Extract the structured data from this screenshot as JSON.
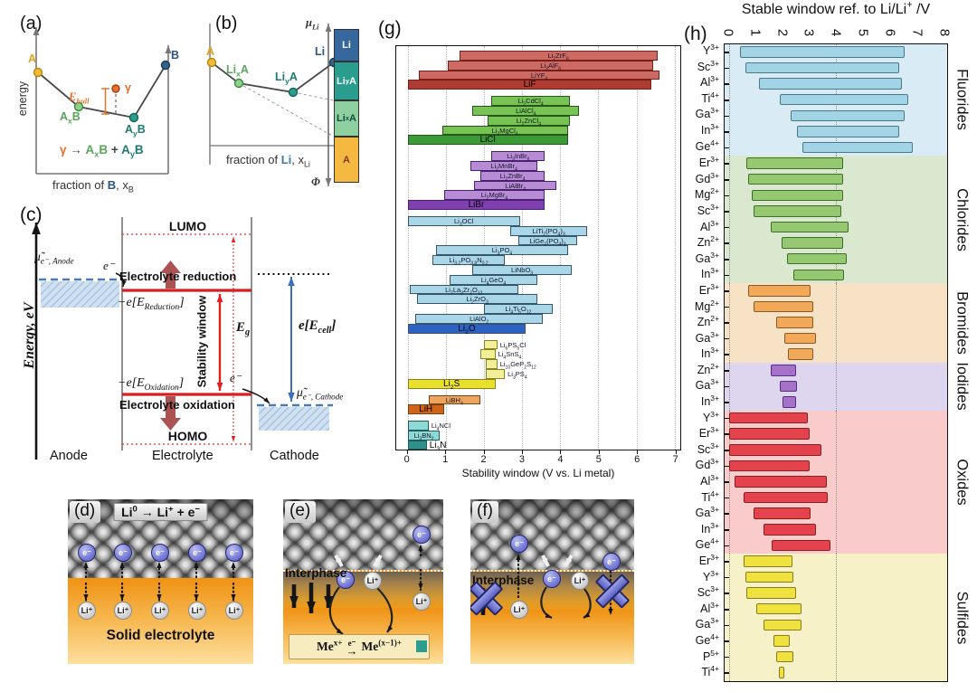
{
  "figure": {
    "panels": {
      "a": {
        "label": "(a)",
        "ylabel": "energy",
        "xlabel_pre": "fraction of ",
        "xlabel_elem": "B",
        "xlabel_post": ", x_{B}",
        "point_A": "A",
        "point_AxB": "A_{x}B",
        "point_AyB": "A_{y}B",
        "point_B": "B",
        "point_gamma": "γ",
        "ehull": "E_{hull}",
        "rx_lhs": "γ",
        "rx_arrow": "→",
        "rx_t1": "A_{x}B",
        "rx_plus": "+",
        "rx_t2": "A_{y}B",
        "colors": {
          "A": "#f0bc3a",
          "AxB": "#8fcf8f",
          "AyB": "#2a9d8f",
          "B": "#33658a",
          "gamma": "#e8702a"
        }
      },
      "b": {
        "label": "(b)",
        "mu": "μ_{Li}",
        "phi": "Φ",
        "xlabel_pre": "fraction of ",
        "xlabel_elem": "Li",
        "xlabel_post": ", x_{Li}",
        "point_A": "A",
        "point_LixA": "Li_{x}A",
        "point_LiyA": "Li_{y}A",
        "point_Li": "Li",
        "segments": [
          {
            "label": "Li",
            "color": "#36689e",
            "text_color": "#ffffff"
          },
          {
            "label": "Li_{y}A",
            "color": "#2a9d8f",
            "text_color": "#ffffff"
          },
          {
            "label": "Li_{x}A",
            "color": "#8fd0a0",
            "text_color": "#14503c"
          },
          {
            "label": "A",
            "color": "#f5b942",
            "text_color": "#7a3c0e"
          }
        ]
      },
      "c": {
        "label": "(c)",
        "ylabel": "Energy, eV",
        "lumo": "LUMO",
        "homo": "HOMO",
        "reduction_label": "Electrolyte reduction",
        "oxidation_label": "Electrolyte oxidation",
        "e_reduction": "−e[E_{Reduction}]",
        "e_oxidation": "−e[E_{Oxidation}]",
        "stability_window": "Stability window",
        "eg": "E_{g}",
        "ecell": "e[E_{cell}]",
        "mu_anode": "μ̃_{e⁻, Anode}",
        "mu_cathode": "μ̃_{e⁻, Cathode}",
        "electron": "e⁻",
        "anode": "Anode",
        "electrolyte": "Electrolyte",
        "cathode": "Cathode"
      },
      "d": {
        "label": "(d)",
        "reaction": "Li^{0} → Li^{+} + e^{−}",
        "electron": "e⁻",
        "ion": "Li⁺",
        "caption": "Solid electrolyte"
      },
      "e": {
        "label": "(e)",
        "interphase": "Interphase",
        "electron": "e⁻",
        "ion": "Li⁺",
        "rx_left": "Me^{x+}",
        "rx_over": "e⁻",
        "rx_arrow": "→",
        "rx_right": "Me^{(x−1)+}"
      },
      "f": {
        "label": "(f)",
        "interphase": "Interphase",
        "electron": "e⁻",
        "ion": "Li⁺"
      },
      "g": {
        "label": "(g)"
      },
      "h": {
        "label": "(h)"
      }
    }
  },
  "chart_data": [
    {
      "id": "g",
      "type": "bar",
      "orientation": "horizontal-range",
      "xlabel": "Stability window (V vs. Li metal)",
      "xlim": [
        0,
        7
      ],
      "xticks": [
        0,
        1,
        2,
        3,
        4,
        5,
        6,
        7
      ],
      "grid": "dotted-vertical",
      "groups": [
        {
          "name": "fluorides",
          "fill": "#cd6a63",
          "border": "#7a1f18",
          "dark_fill": "#ae3b32",
          "bars": [
            {
              "label": "Li_{2}ZrF_{6}",
              "lo": 1.35,
              "hi": 6.55
            },
            {
              "label": "Li_{3}AlF_{6}",
              "lo": 1.05,
              "hi": 6.45
            },
            {
              "label": "LiYF_{4}",
              "lo": 0.3,
              "hi": 6.6
            },
            {
              "label": "LiF",
              "lo": 0,
              "hi": 6.4,
              "dark": true
            }
          ]
        },
        {
          "name": "chlorides",
          "fill": "#77c353",
          "border": "#27561b",
          "dark_fill": "#3a9a35",
          "bars": [
            {
              "label": "Li_{2}CdCl_{4}",
              "lo": 2.2,
              "hi": 4.25
            },
            {
              "label": "LiAlCl_{4}",
              "lo": 1.7,
              "hi": 4.5
            },
            {
              "label": "Li_{2}ZnCl_{4}",
              "lo": 2.1,
              "hi": 4.25
            },
            {
              "label": "Li_{2}MgCl_{4}",
              "lo": 0.9,
              "hi": 4.2
            },
            {
              "label": "LiCl",
              "lo": 0,
              "hi": 4.2,
              "dark": true
            }
          ]
        },
        {
          "name": "bromides",
          "fill": "#b78cd4",
          "border": "#4a2070",
          "dark_fill": "#8040b0",
          "bars": [
            {
              "label": "Li_{3}InBr_{6}",
              "lo": 2.2,
              "hi": 3.6
            },
            {
              "label": "Li_{2}MnBr_{4}",
              "lo": 1.65,
              "hi": 3.4
            },
            {
              "label": "Li_{2}ZnBr_{4}",
              "lo": 1.9,
              "hi": 3.6
            },
            {
              "label": "LiAlBr_{4}",
              "lo": 1.75,
              "hi": 3.9
            },
            {
              "label": "Li_{2}MgBr_{4}",
              "lo": 0.95,
              "hi": 3.6
            },
            {
              "label": "LiBr",
              "lo": 0,
              "hi": 3.6,
              "dark": true
            }
          ]
        },
        {
          "name": "oxides",
          "fill": "#aad7e8",
          "border": "#35566b",
          "dark_fill": "#2b62c4",
          "bars": [
            {
              "label": "Li_{3}OCl",
              "lo": 0,
              "hi": 2.95
            },
            {
              "label": "LiTi_{2}(PO_{4})_{3}",
              "lo": 2.7,
              "hi": 4.7
            },
            {
              "label": "LiGe_{2}(PO_{4})_{3}",
              "lo": 2.9,
              "hi": 4.45
            },
            {
              "label": "Li_{3}PO_{4}",
              "lo": 0.75,
              "hi": 4.2
            },
            {
              "label": "Li_{3.2}PO_{3.8}N_{0.2}",
              "lo": 0.65,
              "hi": 2.55
            },
            {
              "label": "LiNbO_{3}",
              "lo": 1.7,
              "hi": 4.3
            },
            {
              "label": "Li_{4}GeO_{4}",
              "lo": 1.1,
              "hi": 3.4
            },
            {
              "label": "Li_{7}La_{3}Zr_{2}O_{12}",
              "lo": 0.05,
              "hi": 2.9
            },
            {
              "label": "Li_{2}ZrO_{3}",
              "lo": 0.25,
              "hi": 3.4
            },
            {
              "label": "Li_{4}Ti_{5}O_{12}",
              "lo": 2.0,
              "hi": 3.8
            },
            {
              "label": "LiAlO_{2}",
              "lo": 0.2,
              "hi": 3.55
            },
            {
              "label": "Li_{2}O",
              "lo": 0,
              "hi": 3.1,
              "dark": true
            }
          ]
        },
        {
          "name": "sulfides",
          "fill": "#f2ef9a",
          "border": "#8a8420",
          "dark_fill": "#e8e02a",
          "bars": [
            {
              "label": "Li_{6}PS_{5}Cl",
              "lo": 2.0,
              "hi": 2.35,
              "label_pos": "right"
            },
            {
              "label": "Li_{4}SnS_{4}",
              "lo": 1.9,
              "hi": 2.3,
              "label_pos": "right"
            },
            {
              "label": "Li_{10}GeP_{2}S_{12}",
              "lo": 2.05,
              "hi": 2.35,
              "label_pos": "right"
            },
            {
              "label": "Li_{3}PS_{4}",
              "lo": 2.05,
              "hi": 2.55,
              "label_pos": "right"
            },
            {
              "label": "Li_{2}S",
              "lo": 0,
              "hi": 2.3,
              "dark": true
            }
          ]
        },
        {
          "name": "hydrides",
          "fill": "#eca55e",
          "border": "#7a4210",
          "dark_fill": "#cf6418",
          "bars": [
            {
              "label": "LiBH_{4}",
              "lo": 0.55,
              "hi": 1.9
            },
            {
              "label": "LiH",
              "lo": 0,
              "hi": 0.95,
              "dark": true
            }
          ]
        },
        {
          "name": "nitrides",
          "fill": "#8ed9d3",
          "border": "#1f5f5f",
          "dark_fill": "#2f8f8a",
          "bars": [
            {
              "label": "Li_{4}NCl",
              "lo": 0,
              "hi": 0.55,
              "label_pos": "right"
            },
            {
              "label": "Li_{3}BN_{2}",
              "lo": 0,
              "hi": 0.85
            },
            {
              "label": "Li_{3}N",
              "lo": 0,
              "hi": 0.5,
              "dark": true,
              "label_pos": "right"
            }
          ]
        }
      ]
    },
    {
      "id": "h",
      "type": "bar",
      "orientation": "horizontal-range",
      "title": "Stable window ref. to Li/Li^{+} /V",
      "xlim": [
        0,
        8
      ],
      "xticks": [
        0,
        1,
        2,
        3,
        4,
        5,
        6,
        7,
        8
      ],
      "gridlines_at": [
        0,
        4
      ],
      "sections": [
        {
          "name": "Fluorides",
          "bg": "#d9ecf6",
          "fill": "#a2d4e6",
          "border": "#4a7a8a",
          "rows": [
            {
              "ion": "Y^{3+}",
              "lo": 0.4,
              "hi": 6.55
            },
            {
              "ion": "Sc^{3+}",
              "lo": 0.6,
              "hi": 6.35
            },
            {
              "ion": "Al^{3+}",
              "lo": 1.1,
              "hi": 6.45
            },
            {
              "ion": "Ti^{4+}",
              "lo": 1.9,
              "hi": 6.7
            },
            {
              "ion": "Ga^{3+}",
              "lo": 2.3,
              "hi": 6.55
            },
            {
              "ion": "In^{3+}",
              "lo": 2.55,
              "hi": 6.35
            },
            {
              "ion": "Ge^{4+}",
              "lo": 2.75,
              "hi": 6.85
            }
          ]
        },
        {
          "name": "Chlorides",
          "bg": "#dbe8d0",
          "fill": "#95c871",
          "border": "#3f6e2a",
          "rows": [
            {
              "ion": "Er^{3+}",
              "lo": 0.65,
              "hi": 4.25
            },
            {
              "ion": "Gd^{3+}",
              "lo": 0.7,
              "hi": 4.25
            },
            {
              "ion": "Mg^{2+}",
              "lo": 0.85,
              "hi": 4.25
            },
            {
              "ion": "Sc^{3+}",
              "lo": 0.9,
              "hi": 4.2
            },
            {
              "ion": "Al^{3+}",
              "lo": 1.55,
              "hi": 4.45
            },
            {
              "ion": "Zn^{2+}",
              "lo": 1.95,
              "hi": 4.25
            },
            {
              "ion": "Ga^{3+}",
              "lo": 2.15,
              "hi": 4.4
            },
            {
              "ion": "In^{3+}",
              "lo": 2.4,
              "hi": 4.3
            }
          ]
        },
        {
          "name": "Bromides",
          "bg": "#f8e2c6",
          "fill": "#f1a859",
          "border": "#8a5a24",
          "rows": [
            {
              "ion": "Er^{3+}",
              "lo": 0.7,
              "hi": 3.05
            },
            {
              "ion": "Mg^{2+}",
              "lo": 0.9,
              "hi": 3.15
            },
            {
              "ion": "Zn^{2+}",
              "lo": 1.75,
              "hi": 3.15
            },
            {
              "ion": "Ga^{3+}",
              "lo": 2.05,
              "hi": 3.25
            },
            {
              "ion": "In^{3+}",
              "lo": 2.2,
              "hi": 3.15
            }
          ]
        },
        {
          "name": "Iodides",
          "bg": "#ded5ef",
          "fill": "#a571c9",
          "border": "#5a2d85",
          "rows": [
            {
              "ion": "Zn^{2+}",
              "lo": 1.55,
              "hi": 2.5
            },
            {
              "ion": "Ga^{3+}",
              "lo": 1.9,
              "hi": 2.55
            },
            {
              "ion": "In^{3+}",
              "lo": 2.0,
              "hi": 2.5
            }
          ]
        },
        {
          "name": "Oxides",
          "bg": "#f9cbcb",
          "fill": "#e4424d",
          "border": "#8a1f1f",
          "rows": [
            {
              "ion": "Y^{3+}",
              "lo": 0,
              "hi": 2.95
            },
            {
              "ion": "Er^{3+}",
              "lo": 0,
              "hi": 3.0
            },
            {
              "ion": "Sc^{3+}",
              "lo": 0,
              "hi": 3.45
            },
            {
              "ion": "Gd^{3+}",
              "lo": 0,
              "hi": 3.0
            },
            {
              "ion": "Al^{3+}",
              "lo": 0.2,
              "hi": 3.65
            },
            {
              "ion": "Ti^{4+}",
              "lo": 0.55,
              "hi": 3.7
            },
            {
              "ion": "Ga^{3+}",
              "lo": 0.9,
              "hi": 3.05
            },
            {
              "ion": "In^{3+}",
              "lo": 1.3,
              "hi": 3.25
            },
            {
              "ion": "Ge^{4+}",
              "lo": 1.6,
              "hi": 3.8
            }
          ]
        },
        {
          "name": "Sulfides",
          "bg": "#f6f1c6",
          "fill": "#efe23e",
          "border": "#8a7a24",
          "rows": [
            {
              "ion": "Er^{3+}",
              "lo": 0.55,
              "hi": 2.35
            },
            {
              "ion": "Y^{3+}",
              "lo": 0.6,
              "hi": 2.4
            },
            {
              "ion": "Sc^{3+}",
              "lo": 0.65,
              "hi": 2.5
            },
            {
              "ion": "Al^{3+}",
              "lo": 1.0,
              "hi": 2.7
            },
            {
              "ion": "Ga^{3+}",
              "lo": 1.3,
              "hi": 2.7
            },
            {
              "ion": "Ge^{4+}",
              "lo": 1.65,
              "hi": 2.25
            },
            {
              "ion": "P^{5+}",
              "lo": 1.75,
              "hi": 2.4
            },
            {
              "ion": "Ti^{4+}",
              "lo": 1.85,
              "hi": 2.05
            }
          ]
        }
      ]
    }
  ]
}
